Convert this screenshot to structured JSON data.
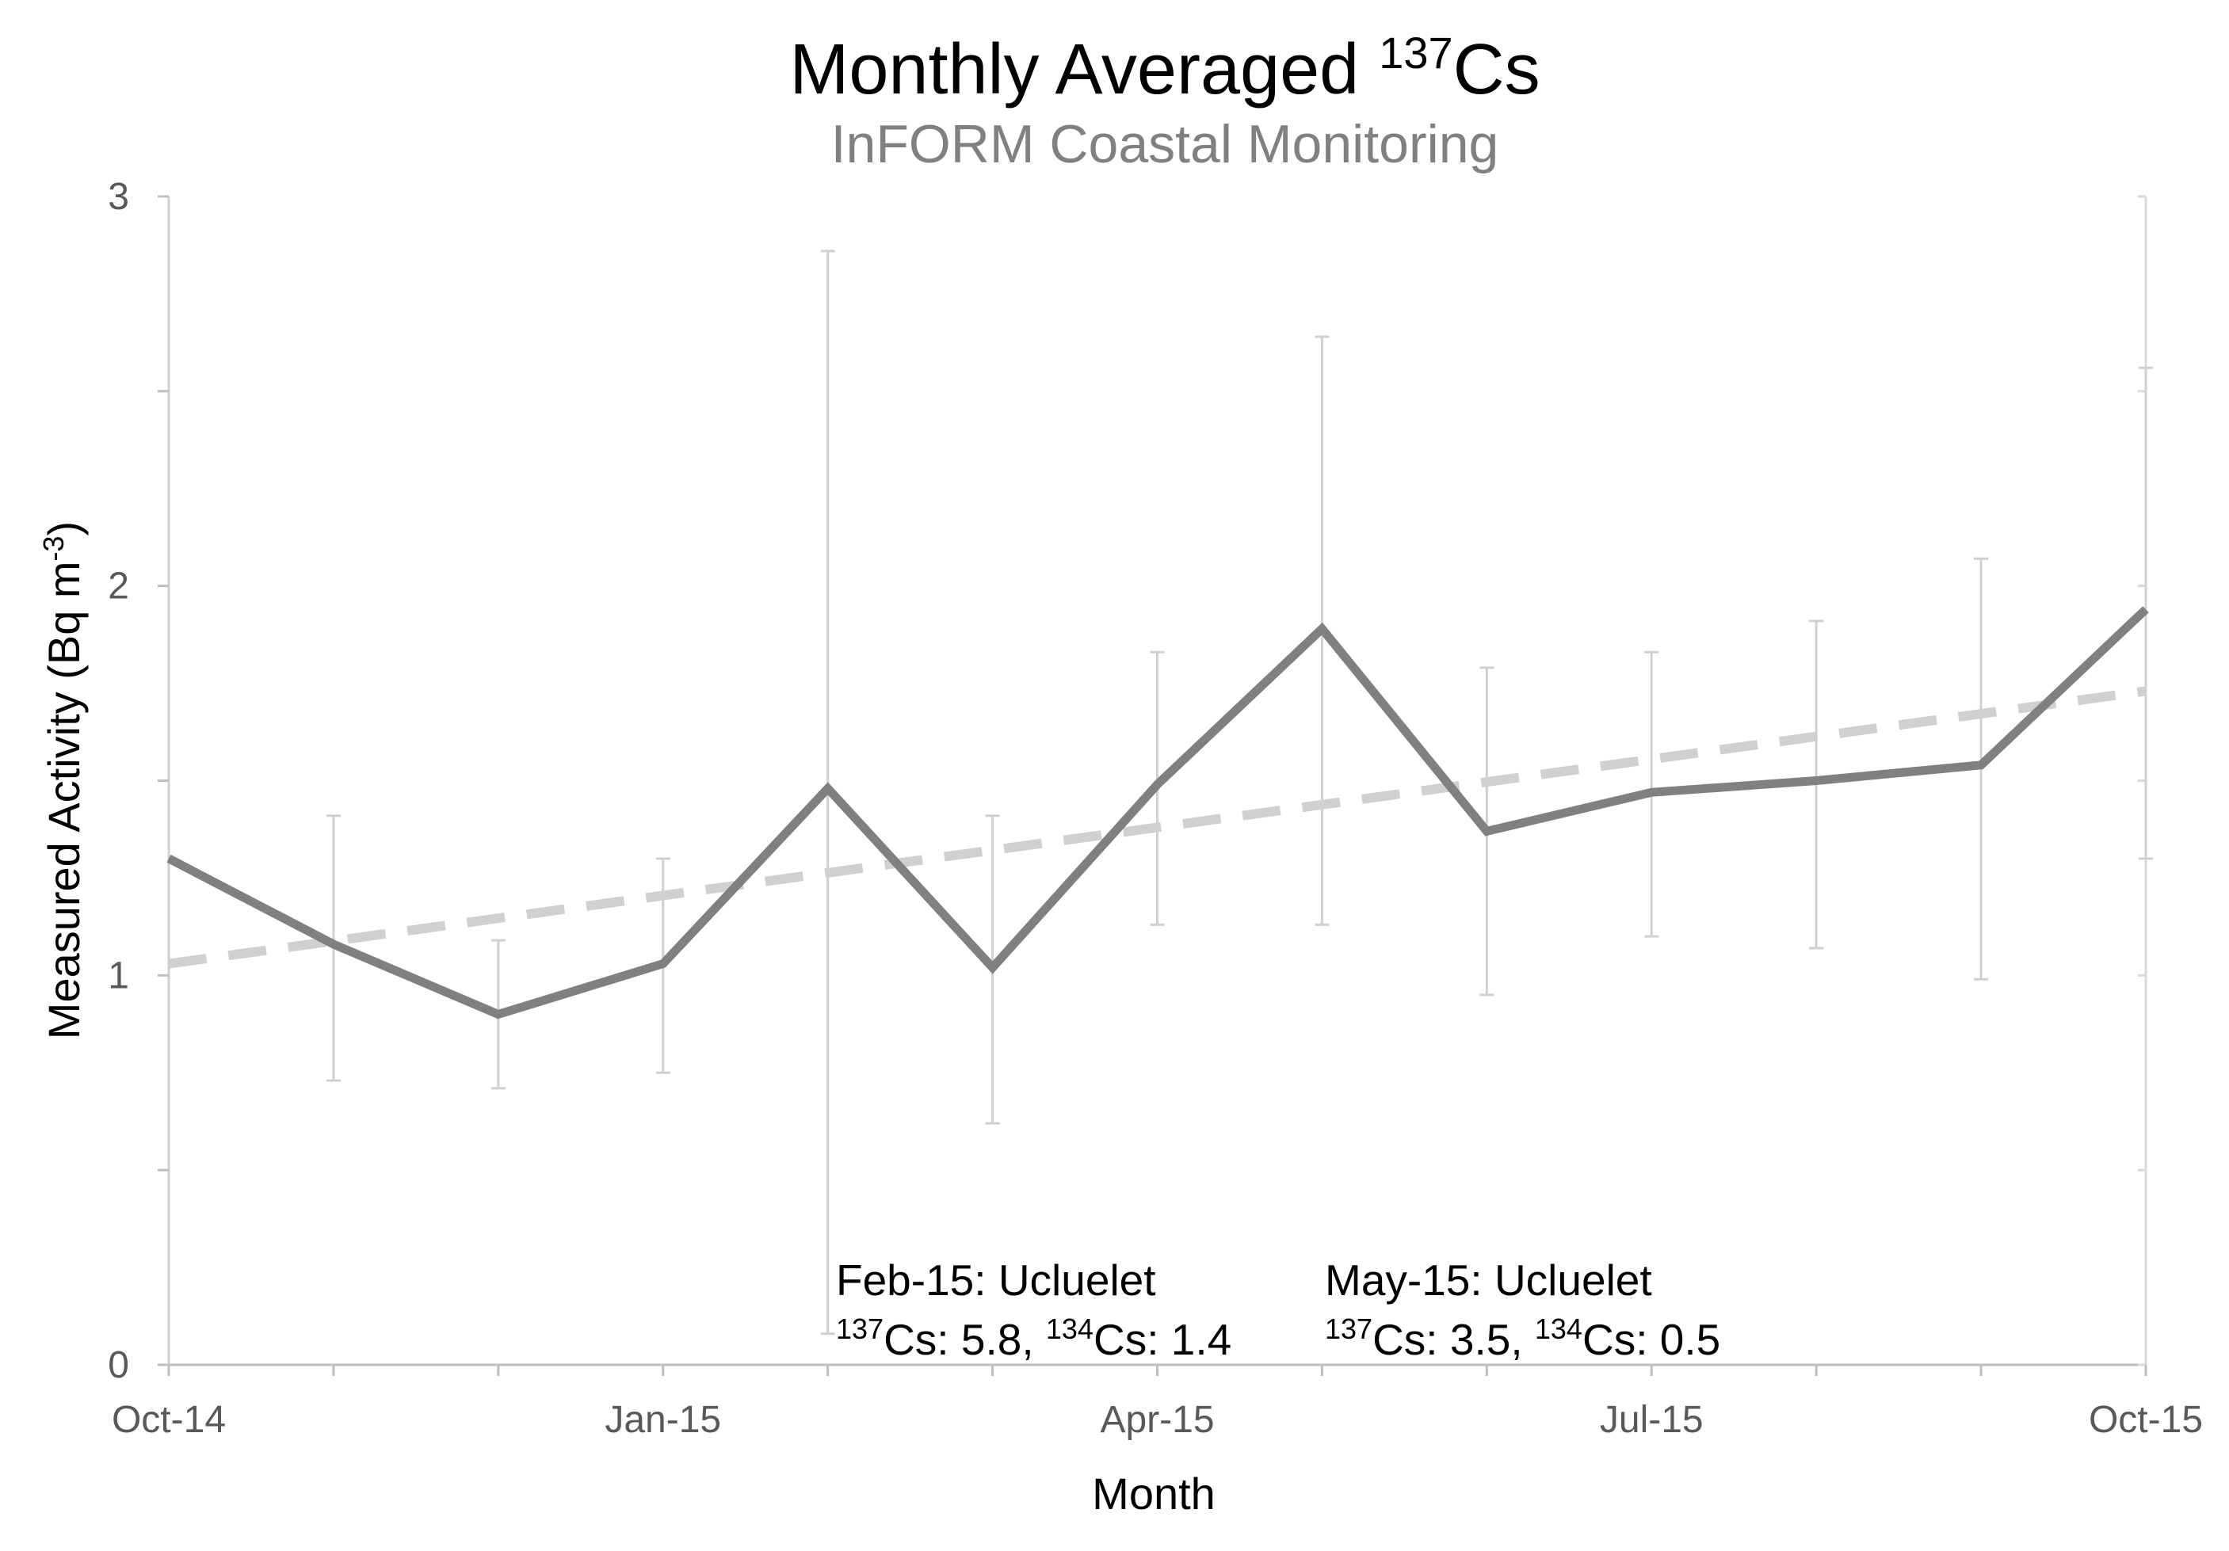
{
  "chart_data": {
    "type": "line",
    "title": {
      "prefix": "Monthly Averaged ",
      "superscript": "137",
      "suffix": "Cs"
    },
    "subtitle": "InFORM Coastal Monitoring",
    "xlabel": "Month",
    "ylabel": {
      "prefix": "Measured Activity (Bq m",
      "superscript": "-3",
      "suffix": ")"
    },
    "ylim": [
      0,
      3
    ],
    "y_ticks": [
      "0",
      "1",
      "2",
      "3"
    ],
    "y_tick_values": [
      0,
      1,
      2,
      3
    ],
    "x_tick_labels": [
      "Oct-14",
      "Jan-15",
      "Apr-15",
      "Jul-15",
      "Oct-15"
    ],
    "x_tick_indices": [
      0,
      3,
      6,
      9,
      12
    ],
    "x": [
      "Oct-14",
      "Nov-14",
      "Dec-14",
      "Jan-15",
      "Feb-15",
      "Mar-15",
      "Apr-15",
      "May-15",
      "Jun-15",
      "Jul-15",
      "Aug-15",
      "Sep-15",
      "Oct-15"
    ],
    "grid": false,
    "legend": "none",
    "series": [
      {
        "style": "solid",
        "color": "#808080",
        "values": [
          1.3,
          1.08,
          0.9,
          1.03,
          1.48,
          1.02,
          1.49,
          1.89,
          1.37,
          1.47,
          1.5,
          1.54,
          1.94
        ],
        "error_low": [
          null,
          0.73,
          0.71,
          0.75,
          0.08,
          0.62,
          1.13,
          1.13,
          0.95,
          1.1,
          1.07,
          0.99,
          1.3
        ],
        "error_high": [
          null,
          1.41,
          1.09,
          1.3,
          2.86,
          1.41,
          1.83,
          2.64,
          1.79,
          1.83,
          1.91,
          2.07,
          2.56
        ]
      },
      {
        "style": "dashed",
        "color": "#d0d0d0",
        "type": "trendline",
        "start": 1.03,
        "end": 1.73
      }
    ],
    "annotations": [
      {
        "line1": "Feb-15: Ucluelet",
        "line2": [
          {
            "sup": "137"
          },
          {
            "text": "Cs: 5.8, "
          },
          {
            "sup": "134"
          },
          {
            "text": "Cs: 1.4"
          }
        ]
      },
      {
        "line1": "May-15: Ucluelet",
        "line2": [
          {
            "sup": "137"
          },
          {
            "text": "Cs: 3.5, "
          },
          {
            "sup": "134"
          },
          {
            "text": "Cs: 0.5"
          }
        ]
      }
    ]
  }
}
